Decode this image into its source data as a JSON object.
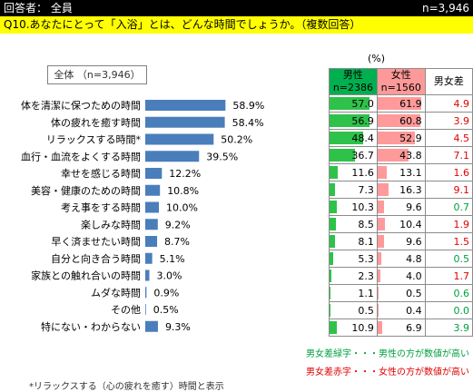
{
  "header": {
    "respondents": "回答者： 全員",
    "n_total": "n=3,946"
  },
  "question": "Q10.あなたにとって「入浴」とは、どんな時間でしょうか。（複数回答）",
  "total_label": "全体 （n=3,946）",
  "unit": "(%)",
  "table_headers": {
    "male": "男性",
    "male_n": "n=2386",
    "female": "女性",
    "female_n": "n=1560",
    "diff": "男女差"
  },
  "chart_data": {
    "type": "bar",
    "orientation": "horizontal",
    "categories": [
      "体を清潔に保つための時間",
      "体の疲れを癒す時間",
      "リラックスする時間*",
      "血行・血流をよくする時間",
      "幸せを感じる時間",
      "美容・健康のための時間",
      "考え事をする時間",
      "楽しみな時間",
      "早く済ませたい時間",
      "自分と向き合う時間",
      "家族との触れ合いの時間",
      "ムダな時間",
      "その他",
      "特にない・わからない"
    ],
    "series": [
      {
        "values": [
          58.9,
          58.4,
          50.2,
          39.5,
          12.2,
          10.8,
          10.0,
          9.2,
          8.7,
          5.1,
          3.0,
          0.9,
          0.5,
          9.3
        ]
      }
    ],
    "value_labels": [
      "58.9%",
      "58.4%",
      "50.2%",
      "39.5%",
      "12.2%",
      "10.8%",
      "10.0%",
      "9.2%",
      "8.7%",
      "5.1%",
      "3.0%",
      "0.9%",
      "0.5%",
      "9.3%"
    ],
    "color": "#4a7ebb"
  },
  "table": {
    "male": [
      "57.0",
      "56.9",
      "48.4",
      "36.7",
      "11.6",
      "7.3",
      "10.3",
      "8.5",
      "8.1",
      "5.3",
      "2.3",
      "1.1",
      "0.5",
      "10.9"
    ],
    "female": [
      "61.9",
      "60.8",
      "52.9",
      "43.8",
      "13.1",
      "16.3",
      "9.6",
      "10.4",
      "9.6",
      "4.8",
      "4.0",
      "0.5",
      "0.4",
      "6.9"
    ],
    "diff": [
      "4.9",
      "3.9",
      "4.5",
      "7.1",
      "1.6",
      "9.1",
      "0.7",
      "1.9",
      "1.5",
      "0.5",
      "1.7",
      "0.6",
      "0.0",
      "3.9"
    ],
    "diff_sign": [
      "f",
      "f",
      "f",
      "f",
      "f",
      "f",
      "m",
      "f",
      "f",
      "m",
      "f",
      "m",
      "m",
      "m"
    ],
    "colors": {
      "male_fill": "#2ec24a",
      "female_fill": "#ff9a9a",
      "male_text": "#00a040",
      "female_text": "#e00000"
    }
  },
  "notes": {
    "green": "男女差緑字・・・男性の方が数値が高い",
    "red": "男女差赤字・・・女性の方が数値が高い",
    "footnote": "*リラックスする（心の疲れを癒す）時間と表示"
  }
}
